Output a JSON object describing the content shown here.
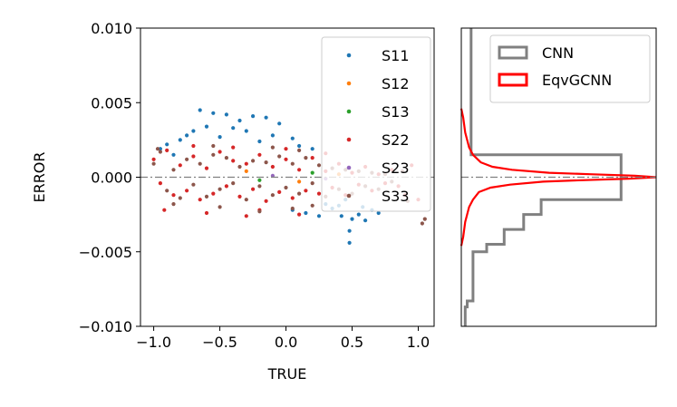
{
  "chart_data": [
    {
      "type": "scatter",
      "xlabel": "TRUE",
      "ylabel": "ERROR",
      "xlim": [
        -1.1,
        1.12
      ],
      "ylim": [
        -0.01,
        0.01
      ],
      "xticks": [
        {
          "value": -1.0,
          "label": "−1.0"
        },
        {
          "value": -0.5,
          "label": "−0.5"
        },
        {
          "value": 0.0,
          "label": "0.0"
        },
        {
          "value": 0.5,
          "label": "0.5"
        },
        {
          "value": 1.0,
          "label": "1.0"
        }
      ],
      "yticks": [
        {
          "value": 0.01,
          "label": "0.010"
        },
        {
          "value": 0.005,
          "label": "0.005"
        },
        {
          "value": 0.0,
          "label": "0.000"
        },
        {
          "value": -0.005,
          "label": "−0.005"
        },
        {
          "value": -0.01,
          "label": "−0.010"
        }
      ],
      "reference_line": {
        "y": 0.0,
        "style": "dash-dot",
        "color": "#808080"
      },
      "legend_placement": "top-right",
      "grid": false,
      "series": [
        {
          "name": "S11",
          "color": "#1f77b4",
          "points": [
            [
              -0.65,
              0.0045
            ],
            [
              -0.55,
              0.0043
            ],
            [
              -0.45,
              0.0042
            ],
            [
              -0.35,
              0.0038
            ],
            [
              -0.25,
              0.0041
            ],
            [
              -0.15,
              0.004
            ],
            [
              -0.05,
              0.0036
            ],
            [
              -0.7,
              0.0031
            ],
            [
              -0.6,
              0.0034
            ],
            [
              -0.4,
              0.0033
            ],
            [
              -0.3,
              0.0031
            ],
            [
              -0.1,
              0.0028
            ],
            [
              0.05,
              0.0026
            ],
            [
              -0.9,
              0.0022
            ],
            [
              -0.8,
              0.0025
            ],
            [
              -0.5,
              0.0027
            ],
            [
              0.1,
              0.0021
            ],
            [
              -0.95,
              0.0019
            ],
            [
              -0.2,
              0.0024
            ],
            [
              0.2,
              0.0019
            ],
            [
              0.35,
              -0.0021
            ],
            [
              0.42,
              -0.0026
            ],
            [
              0.5,
              -0.0028
            ],
            [
              0.55,
              -0.0025
            ],
            [
              0.6,
              -0.0029
            ],
            [
              0.48,
              -0.0044
            ],
            [
              0.48,
              -0.0036
            ],
            [
              0.65,
              -0.0022
            ],
            [
              0.3,
              -0.0018
            ],
            [
              0.7,
              -0.0024
            ],
            [
              0.25,
              -0.0026
            ],
            [
              0.4,
              -0.0019
            ],
            [
              0.58,
              -0.002
            ],
            [
              0.15,
              -0.0024
            ],
            [
              -0.75,
              0.0028
            ],
            [
              -0.85,
              0.0015
            ],
            [
              0.45,
              -0.0015
            ],
            [
              0.05,
              -0.0022
            ]
          ]
        },
        {
          "name": "S12",
          "color": "#ff7f0e",
          "points": [
            [
              -0.3,
              0.0004
            ],
            [
              0.1,
              -0.0003
            ],
            [
              0.4,
              0.0002
            ]
          ]
        },
        {
          "name": "S13",
          "color": "#2ca02c",
          "points": [
            [
              -0.2,
              -0.0002
            ],
            [
              0.2,
              0.0003
            ]
          ]
        },
        {
          "name": "S22",
          "color": "#d62728",
          "points": [
            [
              -1.0,
              0.0012
            ],
            [
              -0.95,
              -0.0004
            ],
            [
              -0.9,
              0.0018
            ],
            [
              -0.85,
              -0.0012
            ],
            [
              -0.8,
              0.0008
            ],
            [
              -0.75,
              -0.0009
            ],
            [
              -0.7,
              0.0014
            ],
            [
              -0.65,
              -0.0015
            ],
            [
              -0.6,
              0.0006
            ],
            [
              -0.55,
              -0.0011
            ],
            [
              -0.5,
              0.0017
            ],
            [
              -0.45,
              -0.0006
            ],
            [
              -0.4,
              0.0011
            ],
            [
              -0.35,
              -0.0013
            ],
            [
              -0.3,
              0.0009
            ],
            [
              -0.25,
              -0.0008
            ],
            [
              -0.2,
              0.0015
            ],
            [
              -0.15,
              -0.0016
            ],
            [
              -0.1,
              0.0007
            ],
            [
              -0.05,
              -0.001
            ],
            [
              0.0,
              0.0012
            ],
            [
              0.05,
              -0.0014
            ],
            [
              0.1,
              0.0005
            ],
            [
              0.15,
              -0.0009
            ],
            [
              0.2,
              0.0013
            ],
            [
              0.25,
              -0.0011
            ],
            [
              0.3,
              0.0004
            ],
            [
              0.35,
              -0.0007
            ],
            [
              0.4,
              0.0009
            ],
            [
              0.45,
              -0.0012
            ],
            [
              0.5,
              0.0003
            ],
            [
              0.55,
              -0.0005
            ],
            [
              0.6,
              0.0007
            ],
            [
              0.65,
              -0.0009
            ],
            [
              0.7,
              0.0002
            ],
            [
              0.75,
              -0.0004
            ],
            [
              0.8,
              0.0005
            ],
            [
              0.85,
              -0.0006
            ],
            [
              -0.92,
              -0.0022
            ],
            [
              -0.6,
              -0.0024
            ],
            [
              -0.3,
              -0.0026
            ],
            [
              0.1,
              -0.0025
            ],
            [
              0.95,
              0.0008
            ],
            [
              0.9,
              -0.0012
            ],
            [
              -0.4,
              0.002
            ],
            [
              0.0,
              0.0019
            ],
            [
              -0.7,
              0.0021
            ],
            [
              0.3,
              0.0016
            ],
            [
              1.0,
              -0.0015
            ],
            [
              -0.2,
              -0.0022
            ]
          ]
        },
        {
          "name": "S23",
          "color": "#9467bd",
          "points": [
            [
              -0.1,
              0.0001
            ],
            [
              0.3,
              -0.0001
            ]
          ]
        },
        {
          "name": "S33",
          "color": "#8c564b",
          "points": [
            [
              -1.0,
              0.0009
            ],
            [
              -0.95,
              0.0017
            ],
            [
              -0.9,
              -0.0009
            ],
            [
              -0.85,
              0.0005
            ],
            [
              -0.8,
              -0.0014
            ],
            [
              -0.75,
              0.0012
            ],
            [
              -0.7,
              -0.0005
            ],
            [
              -0.65,
              0.0009
            ],
            [
              -0.6,
              -0.0013
            ],
            [
              -0.55,
              0.0015
            ],
            [
              -0.5,
              -0.0008
            ],
            [
              -0.45,
              0.0013
            ],
            [
              -0.4,
              -0.0004
            ],
            [
              -0.35,
              0.0007
            ],
            [
              -0.3,
              -0.0015
            ],
            [
              -0.25,
              0.0011
            ],
            [
              -0.2,
              -0.0006
            ],
            [
              -0.15,
              0.001
            ],
            [
              -0.1,
              -0.0012
            ],
            [
              -0.05,
              0.0014
            ],
            [
              0.0,
              -0.0007
            ],
            [
              0.05,
              0.0009
            ],
            [
              0.1,
              -0.0011
            ],
            [
              0.15,
              0.0013
            ],
            [
              0.2,
              -0.0004
            ],
            [
              0.25,
              0.0008
            ],
            [
              0.3,
              -0.0013
            ],
            [
              0.35,
              0.0006
            ],
            [
              0.4,
              -0.0008
            ],
            [
              0.45,
              0.0005
            ],
            [
              0.5,
              -0.0011
            ],
            [
              0.55,
              0.0004
            ],
            [
              0.6,
              -0.0006
            ],
            [
              0.65,
              0.0003
            ],
            [
              0.7,
              -0.0008
            ],
            [
              0.75,
              0.0002
            ],
            [
              0.8,
              -0.0003
            ],
            [
              -0.97,
              0.0019
            ],
            [
              -0.85,
              -0.0018
            ],
            [
              -0.5,
              -0.002
            ],
            [
              -0.2,
              -0.0023
            ],
            [
              0.05,
              -0.0021
            ],
            [
              0.2,
              -0.0019
            ],
            [
              -0.1,
              0.002
            ],
            [
              1.03,
              -0.0031
            ],
            [
              1.05,
              -0.0028
            ],
            [
              0.92,
              -0.0016
            ],
            [
              0.88,
              0.0004
            ],
            [
              -0.55,
              0.0021
            ],
            [
              0.1,
              0.0018
            ]
          ]
        }
      ]
    },
    {
      "type": "histogram",
      "orientation": "horizontal",
      "ylim": [
        -0.01,
        0.01
      ],
      "legend_placement": "top",
      "reference_line": {
        "y": 0.0,
        "style": "dash-dot",
        "color": "#808080"
      },
      "series": [
        {
          "name": "CNN",
          "color": "#808080",
          "bins": [
            {
              "y0": 0.0015,
              "y1": 0.01,
              "count": 0.05
            },
            {
              "y0": -0.0015,
              "y1": 0.0015,
              "count": 0.82
            },
            {
              "y0": -0.0025,
              "y1": -0.0015,
              "count": 0.41
            },
            {
              "y0": -0.0035,
              "y1": -0.0025,
              "count": 0.32
            },
            {
              "y0": -0.0045,
              "y1": -0.0035,
              "count": 0.22
            },
            {
              "y0": -0.005,
              "y1": -0.0045,
              "count": 0.13
            },
            {
              "y0": -0.0083,
              "y1": -0.005,
              "count": 0.06
            },
            {
              "y0": -0.0087,
              "y1": -0.0083,
              "count": 0.03
            },
            {
              "y0": -0.01,
              "y1": -0.0087,
              "count": 0.02
            }
          ]
        },
        {
          "name": "EqvGCNN",
          "color": "#ff0000",
          "profile": [
            [
              0.0046,
              0.0
            ],
            [
              0.004,
              0.01
            ],
            [
              0.003,
              0.02
            ],
            [
              0.002,
              0.04
            ],
            [
              0.0015,
              0.06
            ],
            [
              0.001,
              0.1
            ],
            [
              0.0007,
              0.16
            ],
            [
              0.0005,
              0.26
            ],
            [
              0.0003,
              0.45
            ],
            [
              0.0002,
              0.66
            ],
            [
              0.0001,
              0.89
            ],
            [
              0.0,
              1.0
            ],
            [
              -0.0001,
              0.86
            ],
            [
              -0.0002,
              0.62
            ],
            [
              -0.0003,
              0.42
            ],
            [
              -0.0005,
              0.25
            ],
            [
              -0.0007,
              0.15
            ],
            [
              -0.001,
              0.09
            ],
            [
              -0.0015,
              0.06
            ],
            [
              -0.002,
              0.04
            ],
            [
              -0.003,
              0.02
            ],
            [
              -0.004,
              0.01
            ],
            [
              -0.0046,
              0.0
            ]
          ]
        }
      ]
    }
  ]
}
